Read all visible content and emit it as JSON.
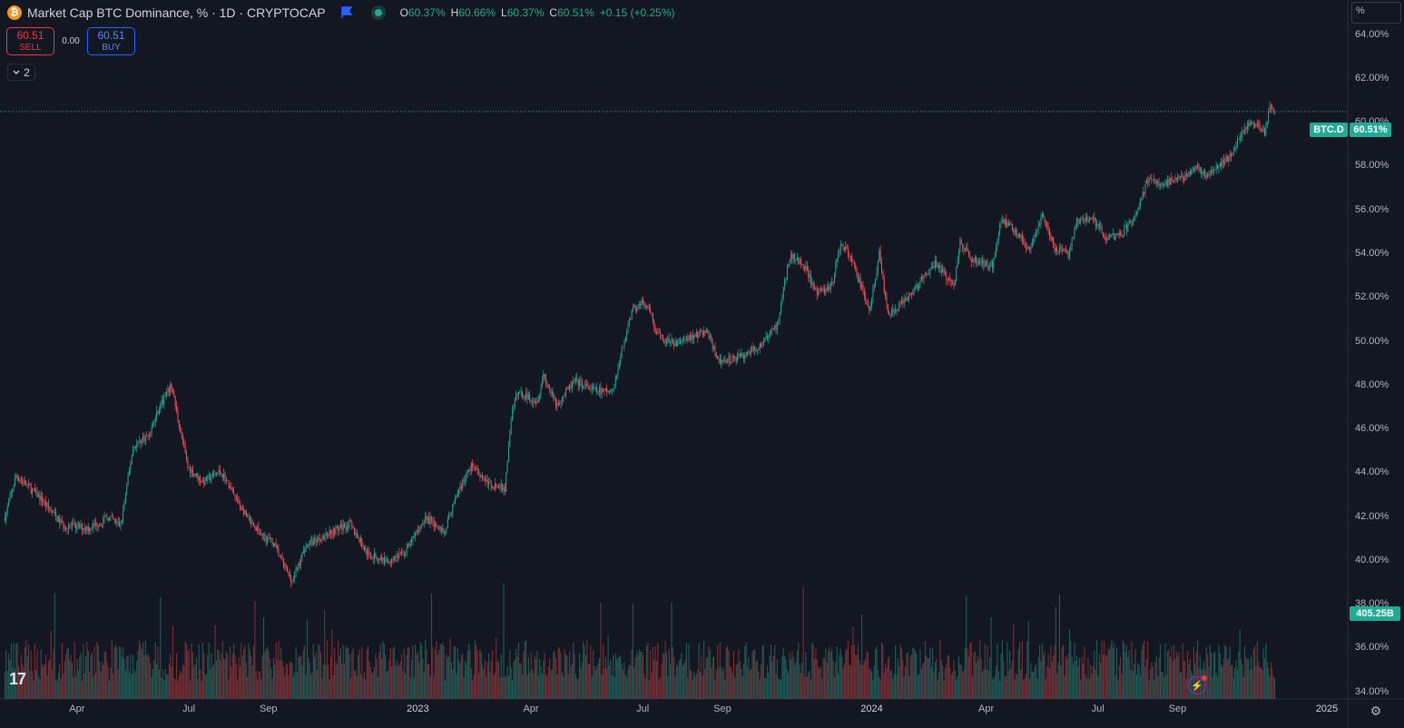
{
  "header": {
    "symbol_title": "Market Cap BTC Dominance, % · 1D · CRYPTOCAP",
    "icons": {
      "symbol": "bitcoin-icon",
      "flag": "flag-icon",
      "status": "market-status-icon"
    },
    "ohlc": {
      "o_label": "O",
      "o": "60.37%",
      "h_label": "H",
      "h": "60.66%",
      "l_label": "L",
      "l": "60.37%",
      "c_label": "C",
      "c": "60.51%",
      "change": "+0.15 (+0.25%)"
    }
  },
  "trade": {
    "sell_price": "60.51",
    "sell_label": "SELL",
    "spread": "0.00",
    "buy_price": "60.51",
    "buy_label": "BUY"
  },
  "indicators_toggle": {
    "count": "2"
  },
  "price_axis": {
    "unit": "%"
  },
  "colors": {
    "background": "#131722",
    "up": "#22ab94",
    "down": "#f7525f",
    "volume_up": "#1f5c56",
    "volume_down": "#7b2d34"
  },
  "badges": {
    "symbol": "BTC.D",
    "price": "60.51%",
    "volume": "405.25B"
  },
  "branding": {
    "logo": "17"
  },
  "chart_data": {
    "type": "candlestick",
    "series": [
      {
        "name": "BTC.D",
        "unit": "%",
        "values": [
          {
            "date": "2022-02-01",
            "close": 42.0
          },
          {
            "date": "2022-02-10",
            "close": 43.9
          },
          {
            "date": "2022-03-01",
            "close": 42.9
          },
          {
            "date": "2022-03-20",
            "close": 41.6
          },
          {
            "date": "2022-04-10",
            "close": 41.5
          },
          {
            "date": "2022-04-25",
            "close": 42.0
          },
          {
            "date": "2022-05-05",
            "close": 41.6
          },
          {
            "date": "2022-05-15",
            "close": 45.2
          },
          {
            "date": "2022-05-28",
            "close": 45.8
          },
          {
            "date": "2022-06-05",
            "close": 47.0
          },
          {
            "date": "2022-06-15",
            "close": 48.0
          },
          {
            "date": "2022-06-20",
            "close": 46.5
          },
          {
            "date": "2022-06-28",
            "close": 44.3
          },
          {
            "date": "2022-07-10",
            "close": 43.6
          },
          {
            "date": "2022-07-25",
            "close": 44.1
          },
          {
            "date": "2022-08-05",
            "close": 42.9
          },
          {
            "date": "2022-08-20",
            "close": 41.5
          },
          {
            "date": "2022-09-05",
            "close": 40.8
          },
          {
            "date": "2022-09-15",
            "close": 39.6
          },
          {
            "date": "2022-09-20",
            "close": 39.1
          },
          {
            "date": "2022-10-01",
            "close": 40.7
          },
          {
            "date": "2022-10-20",
            "close": 41.3
          },
          {
            "date": "2022-11-05",
            "close": 41.7
          },
          {
            "date": "2022-11-20",
            "close": 40.3
          },
          {
            "date": "2022-12-05",
            "close": 40.0
          },
          {
            "date": "2022-12-20",
            "close": 40.4
          },
          {
            "date": "2023-01-05",
            "close": 42.0
          },
          {
            "date": "2023-01-20",
            "close": 41.3
          },
          {
            "date": "2023-02-01",
            "close": 43.3
          },
          {
            "date": "2023-02-12",
            "close": 44.4
          },
          {
            "date": "2023-02-25",
            "close": 43.5
          },
          {
            "date": "2023-03-10",
            "close": 43.3
          },
          {
            "date": "2023-03-15",
            "close": 46.5
          },
          {
            "date": "2023-03-20",
            "close": 47.7
          },
          {
            "date": "2023-04-05",
            "close": 47.3
          },
          {
            "date": "2023-04-10",
            "close": 48.5
          },
          {
            "date": "2023-04-20",
            "close": 47.1
          },
          {
            "date": "2023-05-05",
            "close": 48.2
          },
          {
            "date": "2023-05-20",
            "close": 47.8
          },
          {
            "date": "2023-06-05",
            "close": 47.7
          },
          {
            "date": "2023-06-12",
            "close": 49.6
          },
          {
            "date": "2023-06-20",
            "close": 51.4
          },
          {
            "date": "2023-06-28",
            "close": 51.8
          },
          {
            "date": "2023-07-05",
            "close": 51.3
          },
          {
            "date": "2023-07-10",
            "close": 50.3
          },
          {
            "date": "2023-07-25",
            "close": 49.9
          },
          {
            "date": "2023-08-05",
            "close": 50.2
          },
          {
            "date": "2023-08-20",
            "close": 50.5
          },
          {
            "date": "2023-08-28",
            "close": 49.1
          },
          {
            "date": "2023-09-15",
            "close": 49.3
          },
          {
            "date": "2023-10-01",
            "close": 49.8
          },
          {
            "date": "2023-10-15",
            "close": 50.8
          },
          {
            "date": "2023-10-25",
            "close": 53.9
          },
          {
            "date": "2023-11-05",
            "close": 53.6
          },
          {
            "date": "2023-11-15",
            "close": 52.2
          },
          {
            "date": "2023-11-28",
            "close": 52.6
          },
          {
            "date": "2023-12-05",
            "close": 54.6
          },
          {
            "date": "2023-12-15",
            "close": 53.6
          },
          {
            "date": "2023-12-28",
            "close": 51.4
          },
          {
            "date": "2024-01-05",
            "close": 54.0
          },
          {
            "date": "2024-01-12",
            "close": 51.2
          },
          {
            "date": "2024-01-25",
            "close": 51.8
          },
          {
            "date": "2024-02-05",
            "close": 52.6
          },
          {
            "date": "2024-02-20",
            "close": 53.6
          },
          {
            "date": "2024-03-05",
            "close": 52.5
          },
          {
            "date": "2024-03-10",
            "close": 54.6
          },
          {
            "date": "2024-03-20",
            "close": 53.7
          },
          {
            "date": "2024-04-05",
            "close": 53.5
          },
          {
            "date": "2024-04-12",
            "close": 55.6
          },
          {
            "date": "2024-04-25",
            "close": 55.0
          },
          {
            "date": "2024-05-05",
            "close": 54.1
          },
          {
            "date": "2024-05-15",
            "close": 55.8
          },
          {
            "date": "2024-05-25",
            "close": 54.3
          },
          {
            "date": "2024-06-05",
            "close": 54.0
          },
          {
            "date": "2024-06-12",
            "close": 55.5
          },
          {
            "date": "2024-06-25",
            "close": 55.6
          },
          {
            "date": "2024-07-05",
            "close": 54.8
          },
          {
            "date": "2024-07-15",
            "close": 54.8
          },
          {
            "date": "2024-07-28",
            "close": 55.6
          },
          {
            "date": "2024-08-08",
            "close": 57.4
          },
          {
            "date": "2024-08-20",
            "close": 57.2
          },
          {
            "date": "2024-09-05",
            "close": 57.5
          },
          {
            "date": "2024-09-15",
            "close": 58.0
          },
          {
            "date": "2024-09-25",
            "close": 57.6
          },
          {
            "date": "2024-10-05",
            "close": 58.0
          },
          {
            "date": "2024-10-15",
            "close": 58.7
          },
          {
            "date": "2024-10-25",
            "close": 59.8
          },
          {
            "date": "2024-11-01",
            "close": 60.0
          },
          {
            "date": "2024-11-10",
            "close": 59.6
          },
          {
            "date": "2024-11-14",
            "close": 60.7
          },
          {
            "date": "2024-11-18",
            "close": 60.51
          }
        ]
      },
      {
        "name": "Volume",
        "unit": "B",
        "last": "405.25B"
      }
    ],
    "x_axis": {
      "type": "date",
      "range": [
        "2022-01-28",
        "2025-01-15"
      ],
      "ticks": [
        {
          "date": "2022-04-01",
          "label": "Apr"
        },
        {
          "date": "2022-07-01",
          "label": "Jul"
        },
        {
          "date": "2022-09-01",
          "label": "Sep"
        },
        {
          "date": "2023-01-01",
          "label": "2023"
        },
        {
          "date": "2023-04-01",
          "label": "Apr"
        },
        {
          "date": "2023-07-01",
          "label": "Jul"
        },
        {
          "date": "2023-09-01",
          "label": "Sep"
        },
        {
          "date": "2024-01-01",
          "label": "2024"
        },
        {
          "date": "2024-04-01",
          "label": "Apr"
        },
        {
          "date": "2024-07-01",
          "label": "Jul"
        },
        {
          "date": "2024-09-01",
          "label": "Sep"
        },
        {
          "date": "2025-01-01",
          "label": "2025"
        }
      ]
    },
    "y_axis": {
      "position": "right",
      "unit": "%",
      "range": [
        33.7,
        65.6
      ],
      "ticks": [
        {
          "value": 34,
          "label": "34.00%"
        },
        {
          "value": 36,
          "label": "36.00%"
        },
        {
          "value": 38,
          "label": "38.00%"
        },
        {
          "value": 40,
          "label": "40.00%"
        },
        {
          "value": 42,
          "label": "42.00%"
        },
        {
          "value": 44,
          "label": "44.00%"
        },
        {
          "value": 46,
          "label": "46.00%"
        },
        {
          "value": 48,
          "label": "48.00%"
        },
        {
          "value": 50,
          "label": "50.00%"
        },
        {
          "value": 52,
          "label": "52.00%"
        },
        {
          "value": 54,
          "label": "54.00%"
        },
        {
          "value": 56,
          "label": "56.00%"
        },
        {
          "value": 58,
          "label": "58.00%"
        },
        {
          "value": 60,
          "label": "60.00%"
        },
        {
          "value": 62,
          "label": "62.00%"
        },
        {
          "value": 64,
          "label": "64.00%"
        }
      ]
    },
    "current_price_line": 60.51,
    "grid": false,
    "legend": "top-left"
  }
}
